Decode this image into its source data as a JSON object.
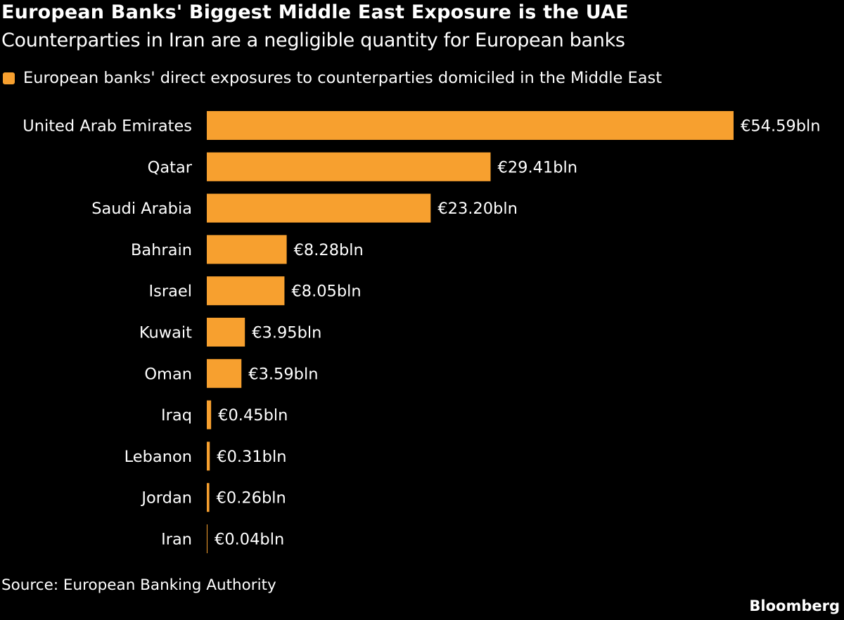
{
  "chart_data": {
    "type": "bar",
    "orientation": "horizontal",
    "title": "European Banks' Biggest Middle East Exposure is the UAE",
    "subtitle": "Counterparties in Iran are a negligible quantity for European banks",
    "legend": "top-left",
    "series": [
      {
        "name": "European banks' direct exposures to counterparties domiciled in the Middle East",
        "color": "#f7a02f",
        "values": [
          54.59,
          29.41,
          23.2,
          8.28,
          8.05,
          3.95,
          3.59,
          0.45,
          0.31,
          0.26,
          0.04
        ]
      }
    ],
    "categories": [
      "United Arab Emirates",
      "Qatar",
      "Saudi Arabia",
      "Bahrain",
      "Israel",
      "Kuwait",
      "Oman",
      "Iraq",
      "Lebanon",
      "Jordan",
      "Iran"
    ],
    "data_labels": [
      "€54.59bln",
      "€29.41bln",
      "€23.20bln",
      "€8.28bln",
      "€8.05bln",
      "€3.95bln",
      "€3.59bln",
      "€0.45bln",
      "€0.31bln",
      "€0.26bln",
      "€0.04bln"
    ],
    "xlim": [
      0,
      54.59
    ],
    "grid": false,
    "xlabel": "",
    "ylabel": ""
  },
  "footer": {
    "source": "Source: European Banking Authority",
    "logo": "Bloomberg"
  }
}
